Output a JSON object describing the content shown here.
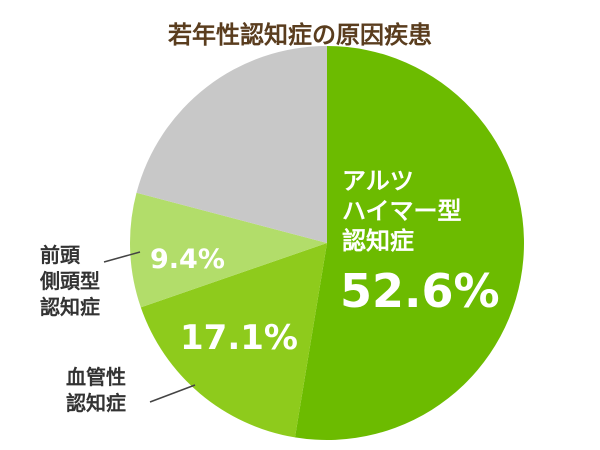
{
  "chart_data": {
    "type": "pie",
    "title": "若年性認知症の原因疾患",
    "categories": [
      "アルツ\nハイマー型\n認知症",
      "血管性\n認知症",
      "前頭\n側頭型\n認知症",
      null
    ],
    "values": [
      52.6,
      17.1,
      9.4,
      20.9
    ],
    "value_labels": [
      "52.6%",
      "17.1%",
      "9.4%",
      null
    ],
    "colors": [
      "#6cbb00",
      "#8ecb1c",
      "#b2dd6a",
      "#c8c8c8"
    ]
  }
}
